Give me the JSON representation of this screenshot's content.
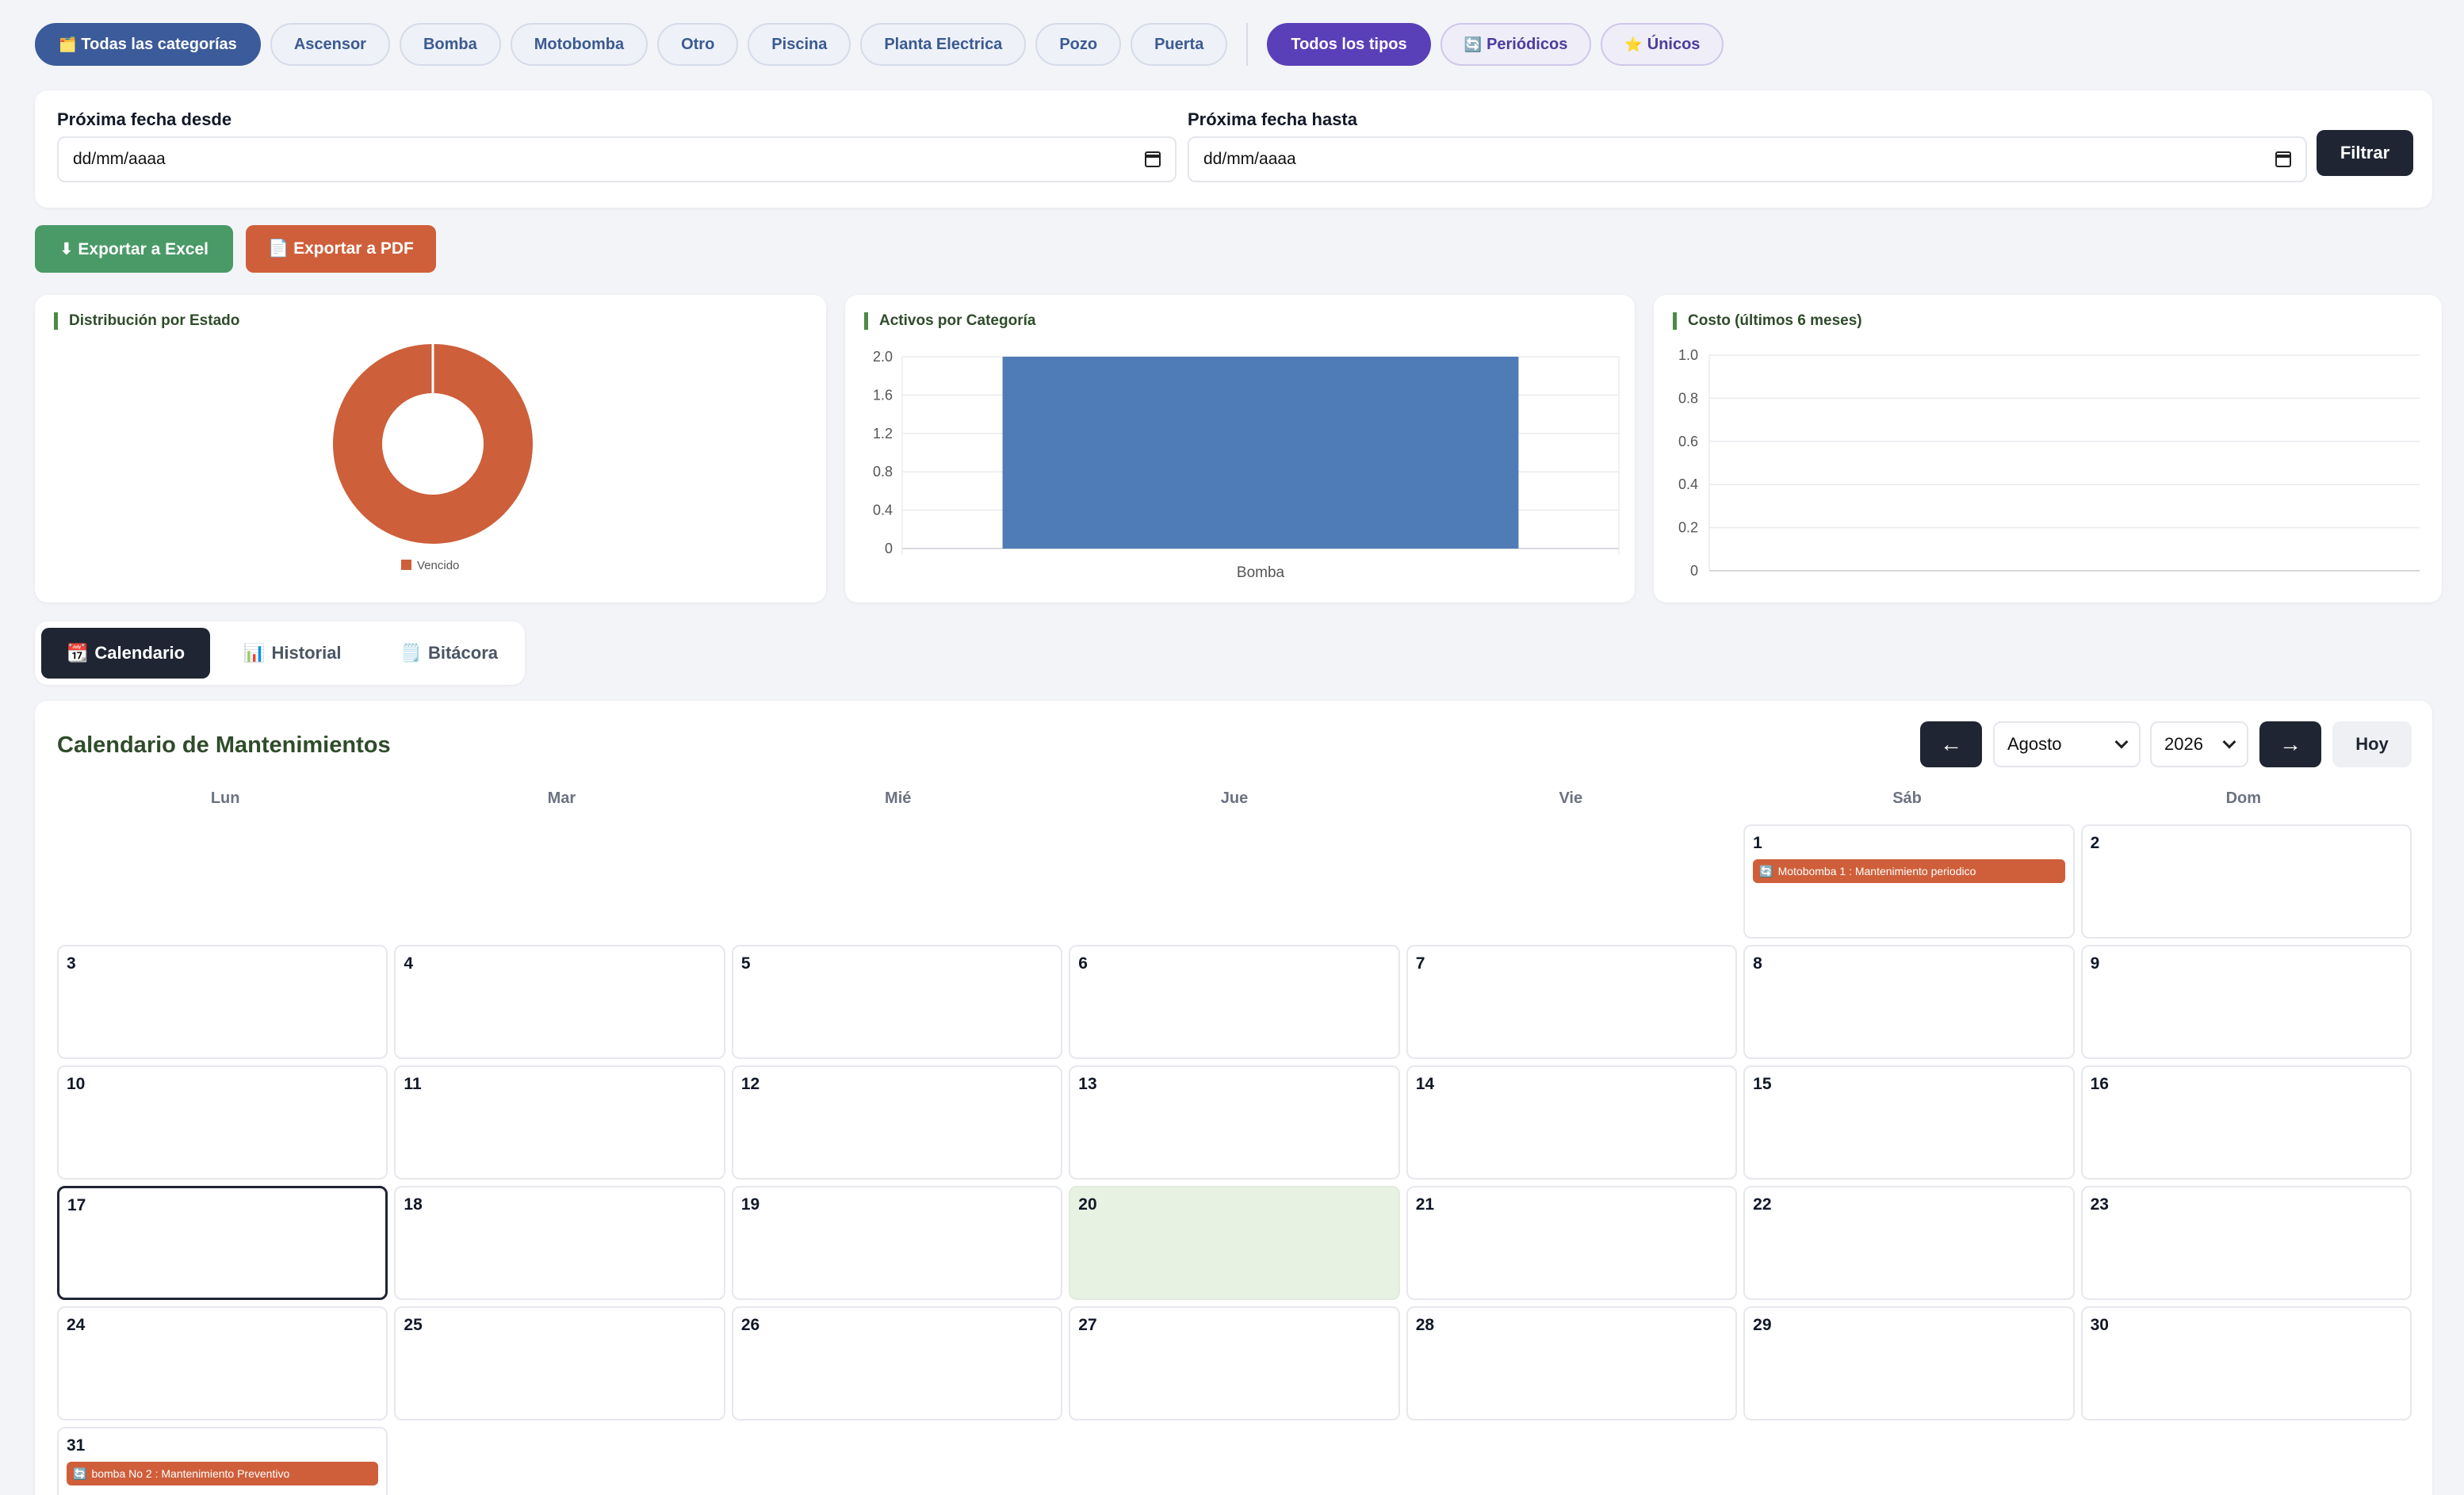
{
  "filters": {
    "categories": [
      {
        "label": "Todas las categorías",
        "icon": "🗂️",
        "active": true
      },
      {
        "label": "Ascensor"
      },
      {
        "label": "Bomba"
      },
      {
        "label": "Motobomba"
      },
      {
        "label": "Otro"
      },
      {
        "label": "Piscina"
      },
      {
        "label": "Planta Electrica"
      },
      {
        "label": "Pozo"
      },
      {
        "label": "Puerta"
      }
    ],
    "types": [
      {
        "label": "Todos los tipos",
        "active": true
      },
      {
        "label": "Periódicos",
        "icon": "🔄"
      },
      {
        "label": "Únicos",
        "icon": "⭐"
      }
    ]
  },
  "date_filter": {
    "from_label": "Próxima fecha desde",
    "from_value": "dd/mm/aaaa",
    "to_label": "Próxima fecha hasta",
    "to_value": "dd/mm/aaaa",
    "button": "Filtrar"
  },
  "export": {
    "excel": "⬇ Exportar a Excel",
    "pdf": "📄 Exportar a PDF"
  },
  "charts": {
    "estado_title": "Distribución por Estado",
    "categoria_title": "Activos por Categoría",
    "costo_title": "Costo (últimos 6 meses)"
  },
  "chart_data": [
    {
      "type": "pie",
      "title": "Distribución por Estado",
      "categories": [
        "Vencido"
      ],
      "values": [
        1
      ],
      "colors": [
        "#cd5f3a"
      ],
      "legend": "bottom"
    },
    {
      "type": "bar",
      "title": "Activos por Categoría",
      "categories": [
        "Bomba"
      ],
      "values": [
        2
      ],
      "ylim": [
        0,
        2
      ],
      "yticks": [
        "0",
        "0.4",
        "0.8",
        "1.2",
        "1.6",
        "2.0"
      ],
      "color": "#4f7cb6",
      "grid": true
    },
    {
      "type": "line",
      "title": "Costo (últimos 6 meses)",
      "categories": [],
      "values": [],
      "ylim": [
        0,
        1
      ],
      "yticks": [
        "0",
        "0.2",
        "0.4",
        "0.6",
        "0.8",
        "1.0"
      ],
      "grid": true
    }
  ],
  "tabs": [
    {
      "label": "Calendario",
      "icon": "📆",
      "active": true
    },
    {
      "label": "Historial",
      "icon": "📊"
    },
    {
      "label": "Bitácora",
      "icon": "🗒️"
    }
  ],
  "calendar": {
    "title": "Calendario de Mantenimientos",
    "month": "Agosto",
    "year": "2026",
    "today_button": "Hoy",
    "prev_icon": "←",
    "next_icon": "→",
    "weekdays": [
      "Lun",
      "Mar",
      "Mié",
      "Jue",
      "Vie",
      "Sáb",
      "Dom"
    ],
    "leading_blanks": 5,
    "days_in_month": 31,
    "today": 17,
    "highlighted": 20,
    "events": [
      {
        "day": 1,
        "icon": "🔄",
        "text": "Motobomba 1 : Mantenimiento periodico"
      },
      {
        "day": 31,
        "icon": "🔄",
        "text": "bomba No 2 : Mantenimiento Preventivo"
      }
    ]
  }
}
